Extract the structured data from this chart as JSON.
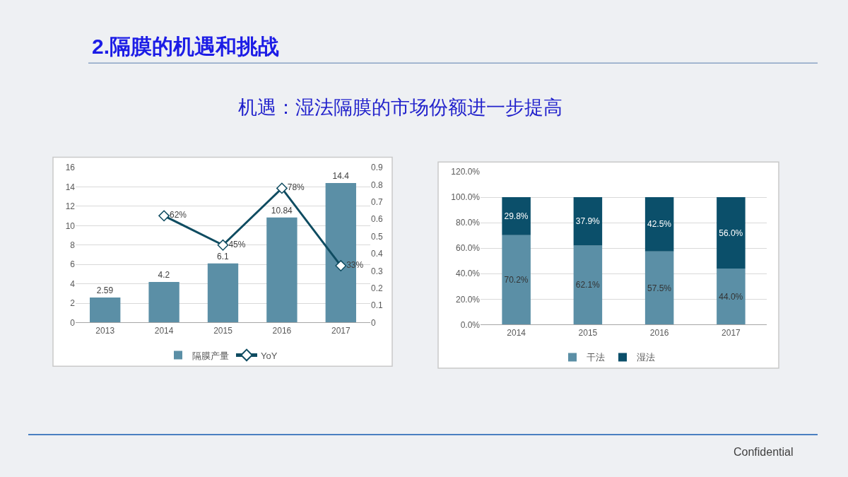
{
  "chart_data": [
    {
      "type": "bar",
      "title": "2.隔膜的机遇和挑战",
      "subtitle": "机遇：湿法隔膜的市场份额进一步提高",
      "categories": [
        "2013",
        "2014",
        "2015",
        "2016",
        "2017"
      ],
      "series": [
        {
          "name": "隔膜产量",
          "type": "bar",
          "color": "#5b8fa6",
          "values": [
            2.59,
            4.2,
            6.1,
            10.84,
            14.4
          ],
          "value_labels": [
            "2.59",
            "4.2",
            "6.1",
            "10.84",
            "14.4"
          ]
        },
        {
          "name": "YoY",
          "type": "line",
          "axis": "y2",
          "color": "#0f4c61",
          "values": [
            null,
            0.62,
            0.45,
            0.78,
            0.33
          ],
          "value_labels": [
            null,
            "62%",
            "45%",
            "78%",
            "33%"
          ],
          "marker": "diamond",
          "line_style": "solid"
        }
      ],
      "ylim": [
        0,
        16
      ],
      "yticks": [
        0,
        2,
        4,
        6,
        8,
        10,
        12,
        14,
        16
      ],
      "y2lim": [
        0,
        0.9
      ],
      "y2ticks": [
        0,
        0.1,
        0.2,
        0.3,
        0.4,
        0.5,
        0.6,
        0.7,
        0.8,
        0.9
      ],
      "grid": "y",
      "legend": "bottom"
    },
    {
      "type": "bar",
      "categories": [
        "2014",
        "2015",
        "2016",
        "2017"
      ],
      "stacked": true,
      "series": [
        {
          "name": "干法",
          "color": "#5b8fa6",
          "values": [
            70.2,
            62.1,
            57.5,
            44.0
          ],
          "value_labels": [
            "70.2%",
            "62.1%",
            "57.5%",
            "44.0%"
          ]
        },
        {
          "name": "湿法",
          "color": "#0b4f6a",
          "values": [
            29.8,
            37.9,
            42.5,
            56.0
          ],
          "value_labels": [
            "29.8%",
            "37.9%",
            "42.5%",
            "56.0%"
          ]
        }
      ],
      "ylim": [
        0,
        120
      ],
      "yticks": [
        {
          "value": 0,
          "label": "0.0%"
        },
        {
          "value": 20,
          "label": "20.0%"
        },
        {
          "value": 40,
          "label": "40.0%"
        },
        {
          "value": 60,
          "label": "60.0%"
        },
        {
          "value": 80,
          "label": "80.0%"
        },
        {
          "value": 100,
          "label": "100.0%"
        },
        {
          "value": 120,
          "label": "120.0%"
        }
      ],
      "grid": "y",
      "legend": "bottom",
      "annotations": [
        "Confidential"
      ]
    }
  ]
}
